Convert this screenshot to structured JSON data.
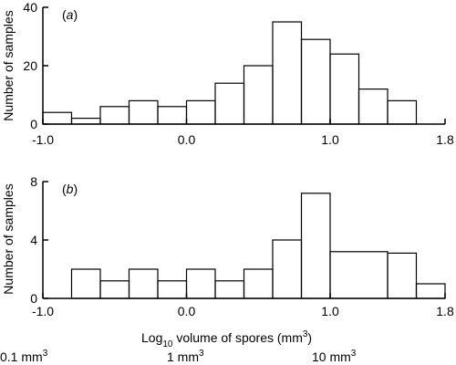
{
  "chart_data": [
    {
      "type": "histogram",
      "panel_label": "(a)",
      "ylabel": "Number of samples",
      "xlim": [
        -1.0,
        1.8
      ],
      "ylim": [
        0,
        40
      ],
      "xticks": [
        -1.0,
        0.0,
        1.0,
        1.8
      ],
      "xtick_labels": [
        "-1.0",
        "0.0",
        "1.0",
        "1.8"
      ],
      "yticks": [
        0,
        20,
        40
      ],
      "ytick_labels": [
        "0",
        "20",
        "40"
      ],
      "bin_edges": [
        -1.0,
        -0.8,
        -0.6,
        -0.4,
        -0.2,
        0.0,
        0.2,
        0.4,
        0.6,
        0.8,
        1.0,
        1.2,
        1.4,
        1.6
      ],
      "values": [
        4,
        2,
        6,
        8,
        6,
        8,
        14,
        20,
        35,
        29,
        24,
        12,
        8
      ]
    },
    {
      "type": "histogram",
      "panel_label": "(b)",
      "ylabel": "Number of samples",
      "xlim": [
        -1.0,
        1.8
      ],
      "ylim": [
        0,
        8
      ],
      "xticks": [
        -1.0,
        0.0,
        1.0,
        1.8
      ],
      "xtick_labels": [
        "-1.0",
        "0.0",
        "1.0",
        "1.8"
      ],
      "yticks": [
        0,
        4,
        8
      ],
      "ytick_labels": [
        "0",
        "4",
        "8"
      ],
      "bin_edges": [
        -0.8,
        -0.6,
        -0.4,
        -0.2,
        0.0,
        0.2,
        0.4,
        0.6,
        0.8,
        1.0,
        1.4,
        1.6,
        1.8
      ],
      "values": [
        2,
        1.2,
        2,
        1.2,
        2,
        1.2,
        2,
        4,
        7.2,
        3.2,
        3.1,
        1
      ]
    }
  ],
  "xlabel": {
    "prefix": "Log",
    "subscript": "10",
    "main": " volume of spores (mm",
    "superscript": "3",
    "suffix": ")"
  },
  "volume_labels": [
    {
      "text": "0.1 mm",
      "sup": "3"
    },
    {
      "text": "1 mm",
      "sup": "3"
    },
    {
      "text": "10 mm",
      "sup": "3"
    }
  ]
}
